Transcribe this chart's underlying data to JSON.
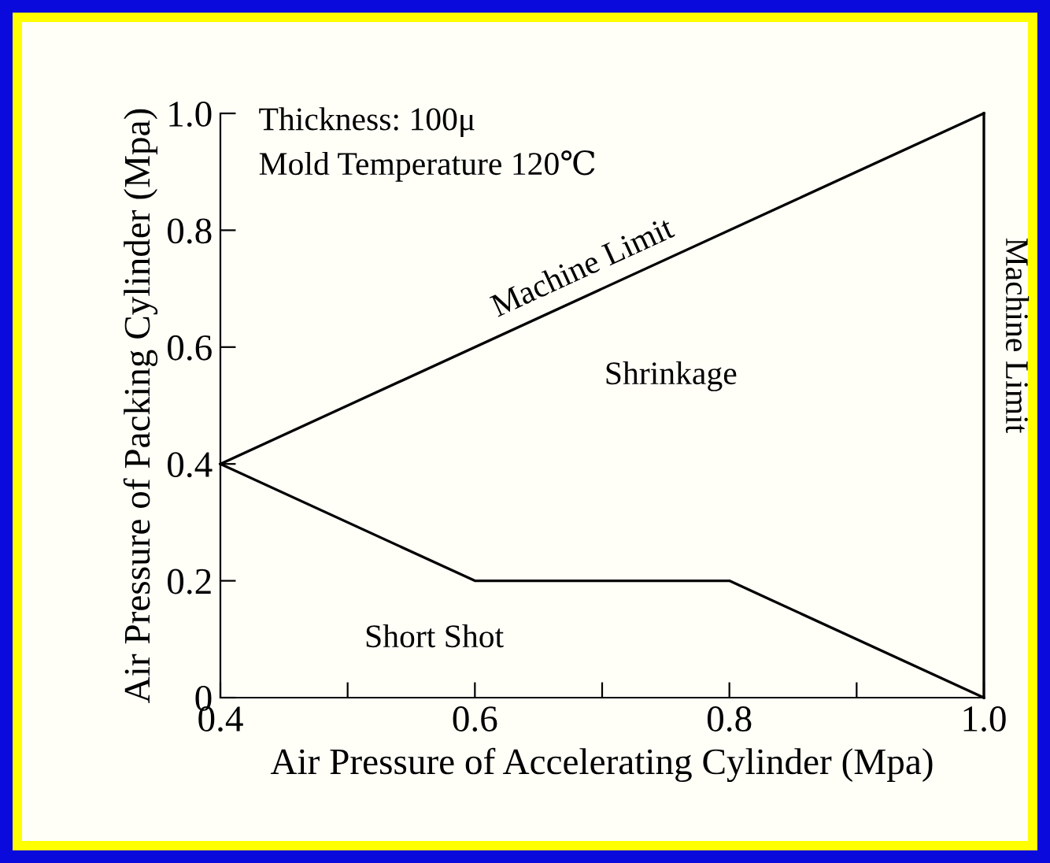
{
  "chart_data": {
    "type": "line",
    "xlabel": "Air Pressure of Accelerating Cylinder (Mpa)",
    "ylabel": "Air Pressure of Packing Cylinder (Mpa)",
    "series": [
      {
        "name": "Machine Limit",
        "color": "#000000",
        "x": [
          0.4,
          1.0
        ],
        "values": [
          0.4,
          1.0
        ]
      },
      {
        "color": "#000000",
        "x": [
          0.4,
          0.6,
          0.8,
          1.0
        ],
        "values": [
          0.4,
          0.2,
          0.2,
          0
        ]
      }
    ],
    "ref_lines": [
      {
        "axis": "x",
        "value": 1.0,
        "label": "Machine Limit",
        "color": "#000000"
      }
    ],
    "annotations": [
      "Thickness: 100μ",
      "Mold Temperature 120℃",
      "Shrinkage",
      "Short Shot"
    ],
    "xlim": [
      0.4,
      1.0
    ],
    "ylim": [
      0,
      1.0
    ],
    "xticks": [
      0.4,
      {
        "value": 0.5,
        "label": null
      },
      0.6,
      {
        "value": 0.7,
        "label": null
      },
      0.8,
      {
        "value": 0.9,
        "label": null
      },
      {
        "value": 1.0,
        "label": "1.0"
      }
    ],
    "yticks": [
      0,
      0.2,
      0.4,
      0.6,
      0.8,
      {
        "value": 1.0,
        "label": "1.0"
      }
    ],
    "grid": false,
    "legend": false,
    "marker": "none",
    "line_style": "solid"
  }
}
